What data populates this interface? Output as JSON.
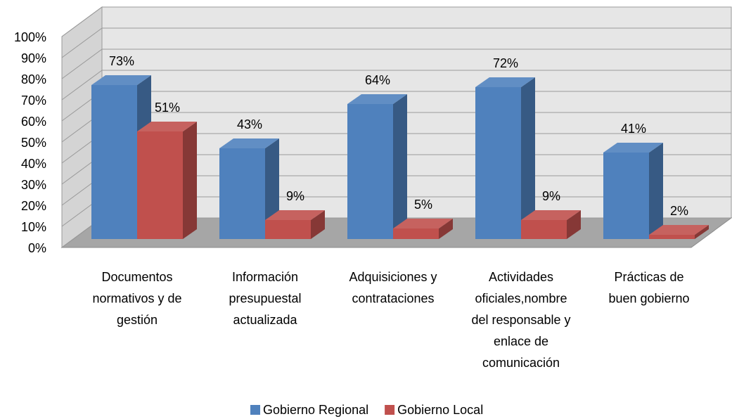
{
  "chart_data": {
    "type": "bar3d",
    "categories": [
      [
        "Documentos",
        "normativos y de",
        "gestión"
      ],
      [
        "Información",
        "presupuestal",
        "actualizada"
      ],
      [
        "Adquisiciones y",
        "contrataciones"
      ],
      [
        "Actividades",
        "oficiales,nombre",
        "del responsable y",
        "enlace de",
        "comunicación"
      ],
      [
        "Prácticas de",
        "buen gobierno"
      ]
    ],
    "series": [
      {
        "name": "Gobierno Regional",
        "color": "#4f81bd",
        "values": [
          73,
          43,
          64,
          72,
          41
        ],
        "value_labels": [
          "73%",
          "43%",
          "64%",
          "72%",
          "41%"
        ]
      },
      {
        "name": "Gobierno Local",
        "color": "#c0504d",
        "values": [
          51,
          9,
          5,
          9,
          2
        ],
        "value_labels": [
          "51%",
          "9%",
          "5%",
          "9%",
          "2%"
        ]
      }
    ],
    "ylim": [
      0,
      100
    ],
    "yticks": [
      {
        "value": 0,
        "label": "0%"
      },
      {
        "value": 10,
        "label": "10%"
      },
      {
        "value": 20,
        "label": "20%"
      },
      {
        "value": 30,
        "label": "30%"
      },
      {
        "value": 40,
        "label": "40%"
      },
      {
        "value": 50,
        "label": "50%"
      },
      {
        "value": 60,
        "label": "60%"
      },
      {
        "value": 70,
        "label": "70%"
      },
      {
        "value": 80,
        "label": "80%"
      },
      {
        "value": 90,
        "label": "90%"
      },
      {
        "value": 100,
        "label": "100%"
      }
    ],
    "grid": true,
    "legend": "bottom"
  }
}
